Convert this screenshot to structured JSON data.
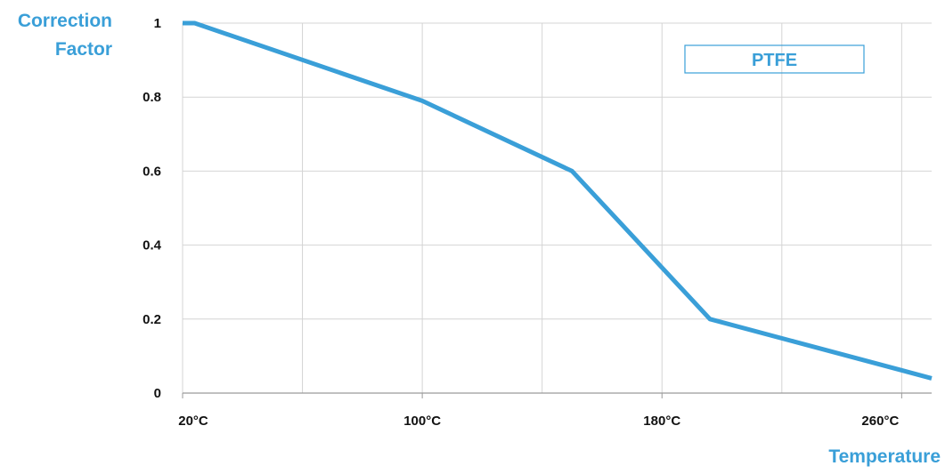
{
  "chart_data": {
    "type": "line",
    "ylabel_lines": [
      "Correction",
      "Factor"
    ],
    "xlabel": "Temperature",
    "x_ticks": [
      "20°C",
      "100°C",
      "180°C",
      "260°C"
    ],
    "x_tick_values": [
      20,
      100,
      180,
      260
    ],
    "y_ticks": [
      "1",
      "0.8",
      "0.6",
      "0.4",
      "0.2",
      "0"
    ],
    "y_tick_values": [
      1,
      0.8,
      0.6,
      0.4,
      0.2,
      0
    ],
    "xlim": [
      20,
      270
    ],
    "ylim": [
      0,
      1
    ],
    "grid": true,
    "legend": {
      "label": "PTFE",
      "placement": "top-right"
    },
    "series": [
      {
        "name": "PTFE",
        "color": "#3a9fd8",
        "x": [
          20,
          24,
          100,
          150,
          196,
          270
        ],
        "y": [
          1.0,
          1.0,
          0.79,
          0.6,
          0.2,
          0.04
        ]
      }
    ]
  }
}
